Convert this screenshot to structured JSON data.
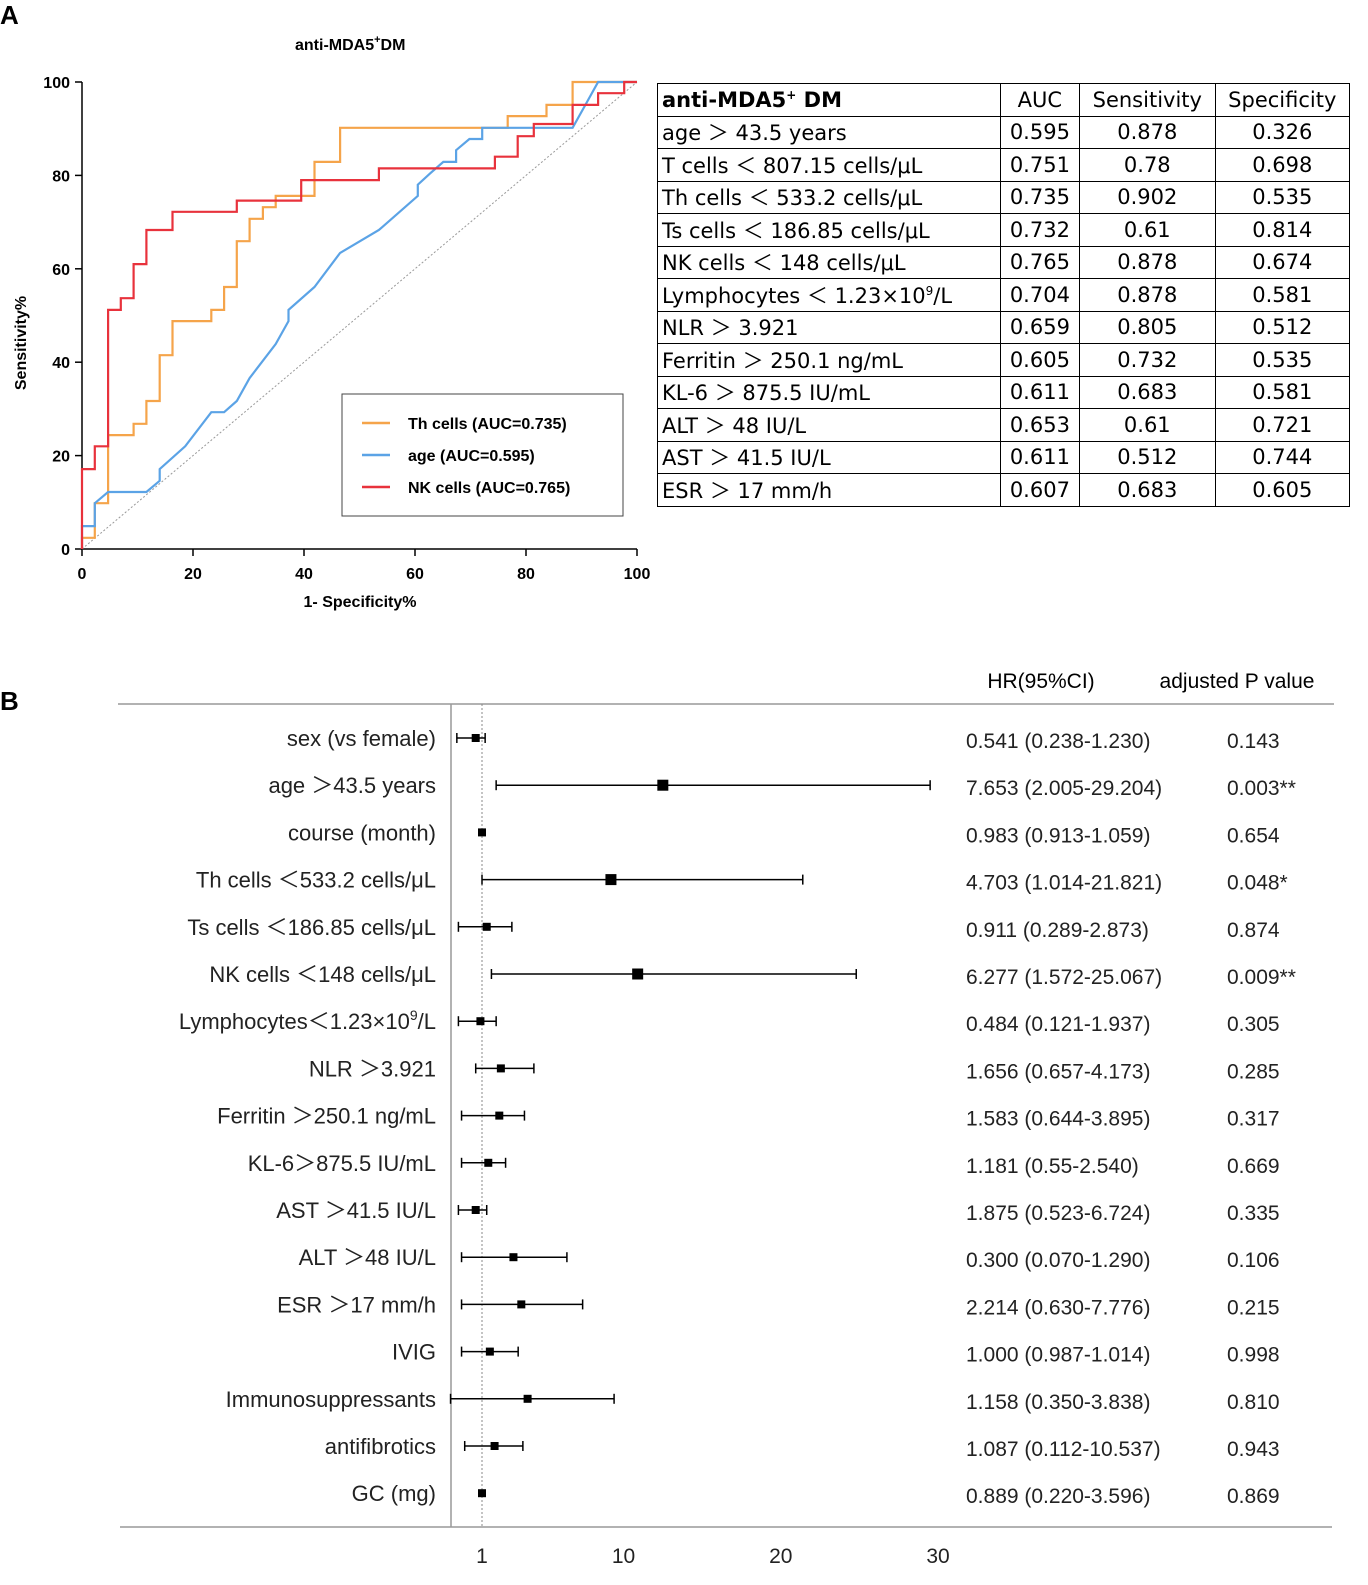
{
  "panel_a": {
    "label": "A",
    "chart_title": "anti-MDA5",
    "chart_title_sup": "+",
    "chart_title_suffix": "DM",
    "x_label": "1- Specificity%",
    "y_label": "Sensitivity%",
    "x_ticks": [
      "0",
      "20",
      "40",
      "60",
      "80",
      "100"
    ],
    "y_ticks": [
      "0",
      "20",
      "40",
      "60",
      "80",
      "100"
    ],
    "legend": [
      {
        "label": "Th cells (AUC=0.735)",
        "color": "#f5a44a"
      },
      {
        "label": "age (AUC=0.595)",
        "color": "#5ba3e6"
      },
      {
        "label": "NK cells (AUC=0.765)",
        "color": "#e8323c"
      }
    ]
  },
  "table_a": {
    "headers": [
      "anti-MDA5",
      "AUC",
      "Sensitivity",
      "Specificity"
    ],
    "header_sup": "+",
    "header_suffix": " DM",
    "rows": [
      {
        "label": "age ＞ 43.5 years",
        "auc": "0.595",
        "sens": "0.878",
        "spec": "0.326"
      },
      {
        "label": "T cells ＜ 807.15 cells/μL",
        "auc": "0.751",
        "sens": "0.78",
        "spec": "0.698"
      },
      {
        "label": "Th cells ＜ 533.2 cells/μL",
        "auc": "0.735",
        "sens": "0.902",
        "spec": "0.535"
      },
      {
        "label": "Ts cells ＜ 186.85 cells/μL",
        "auc": "0.732",
        "sens": "0.61",
        "spec": "0.814"
      },
      {
        "label": "NK cells ＜ 148 cells/μL",
        "auc": "0.765",
        "sens": "0.878",
        "spec": "0.674"
      },
      {
        "label": "Lymphocytes ＜ 1.23×10",
        "sup": "9",
        "label_suffix": "/L",
        "auc": "0.704",
        "sens": "0.878",
        "spec": "0.581"
      },
      {
        "label": "NLR ＞ 3.921",
        "auc": "0.659",
        "sens": "0.805",
        "spec": "0.512"
      },
      {
        "label": "Ferritin ＞ 250.1 ng/mL",
        "auc": "0.605",
        "sens": "0.732",
        "spec": "0.535"
      },
      {
        "label": "KL-6 ＞ 875.5 IU/mL",
        "auc": "0.611",
        "sens": "0.683",
        "spec": "0.581"
      },
      {
        "label": "ALT ＞ 48 IU/L",
        "auc": "0.653",
        "sens": "0.61",
        "spec": "0.721"
      },
      {
        "label": "AST ＞ 41.5 IU/L",
        "auc": "0.611",
        "sens": "0.512",
        "spec": "0.744"
      },
      {
        "label": "ESR ＞ 17 mm/h",
        "auc": "0.607",
        "sens": "0.683",
        "spec": "0.605"
      }
    ]
  },
  "panel_b": {
    "label": "B",
    "col_hr": "HR(95%CI)",
    "col_p": "adjusted P value",
    "x_ticks": [
      "1",
      "10",
      "20",
      "30"
    ]
  },
  "chart_data": [
    {
      "type": "line",
      "title": "anti-MDA5+DM",
      "xlabel": "1- Specificity%",
      "ylabel": "Sensitivity%",
      "xlim": [
        0,
        100
      ],
      "ylim": [
        0,
        100
      ],
      "reference_line": true,
      "series": [
        {
          "name": "Th cells (AUC=0.735)",
          "color": "#f5a44a",
          "points": [
            [
              0,
              0
            ],
            [
              0,
              2.4
            ],
            [
              2.3,
              2.4
            ],
            [
              2.3,
              9.8
            ],
            [
              4.7,
              9.8
            ],
            [
              4.7,
              24.4
            ],
            [
              9.3,
              24.4
            ],
            [
              9.3,
              26.8
            ],
            [
              11.6,
              26.8
            ],
            [
              11.6,
              31.7
            ],
            [
              14,
              31.7
            ],
            [
              14,
              41.5
            ],
            [
              16.3,
              41.5
            ],
            [
              16.3,
              48.8
            ],
            [
              23.3,
              48.8
            ],
            [
              23.3,
              51.2
            ],
            [
              25.6,
              51.2
            ],
            [
              25.6,
              56.1
            ],
            [
              27.9,
              56.1
            ],
            [
              27.9,
              58.5
            ],
            [
              27.9,
              65.9
            ],
            [
              30.2,
              65.9
            ],
            [
              30.2,
              70.7
            ],
            [
              32.6,
              70.7
            ],
            [
              32.6,
              73.2
            ],
            [
              34.9,
              73.2
            ],
            [
              34.9,
              75.6
            ],
            [
              41.9,
              75.6
            ],
            [
              41.9,
              82.9
            ],
            [
              46.5,
              82.9
            ],
            [
              46.5,
              90.2
            ],
            [
              76.7,
              90.2
            ],
            [
              76.7,
              92.7
            ],
            [
              83.7,
              92.7
            ],
            [
              83.7,
              95.1
            ],
            [
              88.4,
              95.1
            ],
            [
              88.4,
              97.6
            ],
            [
              88.4,
              100
            ],
            [
              100,
              100
            ]
          ]
        },
        {
          "name": "age (AUC=0.595)",
          "color": "#5ba3e6",
          "points": [
            [
              0,
              0
            ],
            [
              0,
              4.9
            ],
            [
              2.3,
              4.9
            ],
            [
              2.3,
              9.8
            ],
            [
              4.7,
              12.2
            ],
            [
              9.3,
              12.2
            ],
            [
              11.6,
              12.2
            ],
            [
              14,
              14.6
            ],
            [
              14,
              17.1
            ],
            [
              18.6,
              22
            ],
            [
              23.3,
              29.3
            ],
            [
              25.6,
              29.3
            ],
            [
              27.9,
              31.7
            ],
            [
              30.2,
              36.6
            ],
            [
              34.9,
              43.9
            ],
            [
              37.2,
              48.8
            ],
            [
              37.2,
              51.2
            ],
            [
              41.9,
              56.1
            ],
            [
              46.5,
              63.4
            ],
            [
              53.5,
              68.3
            ],
            [
              60.5,
              75.6
            ],
            [
              60.5,
              78
            ],
            [
              62.8,
              80.5
            ],
            [
              65.1,
              82.9
            ],
            [
              67.4,
              82.9
            ],
            [
              67.4,
              85.4
            ],
            [
              69.8,
              87.8
            ],
            [
              72.1,
              87.8
            ],
            [
              72.1,
              90.2
            ],
            [
              79.1,
              90.2
            ],
            [
              88.4,
              90.2
            ],
            [
              90.7,
              95.1
            ],
            [
              93,
              100
            ],
            [
              100,
              100
            ]
          ]
        },
        {
          "name": "NK cells (AUC=0.765)",
          "color": "#e8323c",
          "points": [
            [
              0,
              0
            ],
            [
              0,
              9.8
            ],
            [
              0,
              17.1
            ],
            [
              2.3,
              17.1
            ],
            [
              2.3,
              19.5
            ],
            [
              2.3,
              22
            ],
            [
              4.7,
              22
            ],
            [
              4.7,
              51.2
            ],
            [
              7,
              51.2
            ],
            [
              7,
              53.7
            ],
            [
              9.3,
              53.7
            ],
            [
              9.3,
              61
            ],
            [
              11.6,
              61
            ],
            [
              11.6,
              68.3
            ],
            [
              16.3,
              68.3
            ],
            [
              16.3,
              72.2
            ],
            [
              27.9,
              72.2
            ],
            [
              27.9,
              74.6
            ],
            [
              39.5,
              74.6
            ],
            [
              39.5,
              79
            ],
            [
              53.5,
              79
            ],
            [
              53.5,
              81.5
            ],
            [
              74.4,
              81.5
            ],
            [
              74.4,
              84
            ],
            [
              78.5,
              84
            ],
            [
              78.5,
              88.4
            ],
            [
              81.4,
              88.4
            ],
            [
              81.4,
              91
            ],
            [
              88.4,
              91
            ],
            [
              88.4,
              95.1
            ],
            [
              93,
              95.1
            ],
            [
              93,
              97.6
            ],
            [
              97.7,
              97.6
            ],
            [
              97.7,
              100
            ],
            [
              100,
              100
            ]
          ]
        }
      ]
    },
    {
      "type": "forest",
      "xlabel": "",
      "reference_line_x": 1,
      "xlim": [
        -1,
        36
      ],
      "categories": [
        "sex (vs female)",
        "age ＞43.5 years",
        "course (month)",
        "Th cells ＜533.2 cells/μL",
        "Ts cells ＜186.85 cells/μL",
        "NK cells ＜148 cells/μL",
        "Lymphocytes＜1.23×10⁹/L",
        "NLR ＞3.921",
        "Ferritin ＞250.1 ng/mL",
        "KL-6＞875.5 IU/mL",
        "AST ＞41.5 IU/L",
        "ALT ＞48 IU/L",
        "ESR ＞17 mm/h",
        "IVIG",
        "Immunosuppressants",
        "antifibrotics",
        "GC (mg)"
      ],
      "rows": [
        {
          "label": "sex (vs female)",
          "hr": 0.541,
          "lo": 0.238,
          "hi": 1.23,
          "hr_text": "0.541 (0.238-1.230)",
          "p_text": "0.143"
        },
        {
          "label": "age ＞43.5 years",
          "hr": 7.653,
          "lo": 2.005,
          "hi": 29.204,
          "hr_text": "7.653 (2.005-29.204)",
          "p_text": "0.003**"
        },
        {
          "label": "course (month)",
          "hr": 0.983,
          "lo": 0.913,
          "hi": 1.059,
          "hr_text": "0.983 (0.913-1.059)",
          "p_text": "0.654"
        },
        {
          "label": "Th cells ＜533.2 cells/μL",
          "hr": 4.703,
          "lo": 1.014,
          "hi": 21.821,
          "hr_text": "4.703 (1.014-21.821)",
          "p_text": "0.048*"
        },
        {
          "label": "Ts cells ＜186.85 cells/μL",
          "hr": 0.911,
          "lo": 0.289,
          "hi": 2.873,
          "hr_text": "0.911 (0.289-2.873)",
          "p_text": "0.874"
        },
        {
          "label": "NK cells ＜148 cells/μL",
          "hr": 6.277,
          "lo": 1.572,
          "hi": 25.067,
          "hr_text": "6.277 (1.572-25.067)",
          "p_text": "0.009**"
        },
        {
          "label": "Lymphocytes＜1.23×10",
          "sup": "9",
          "label_suffix": "/L",
          "hr": 0.484,
          "lo": 0.121,
          "hi": 1.937,
          "hr_text": "0.484 (0.121-1.937)",
          "p_text": "0.305"
        },
        {
          "label": "NLR ＞3.921",
          "hr": 1.656,
          "lo": 0.657,
          "hi": 4.173,
          "hr_text": "1.656 (0.657-4.173)",
          "p_text": "0.285"
        },
        {
          "label": "Ferritin ＞250.1 ng/mL",
          "hr": 1.583,
          "lo": 0.644,
          "hi": 3.895,
          "hr_text": "1.583 (0.644-3.895)",
          "p_text": "0.317"
        },
        {
          "label": "KL-6＞875.5 IU/mL",
          "hr": 1.181,
          "lo": 0.55,
          "hi": 2.54,
          "hr_text": "1.181 (0.55-2.540)",
          "p_text": "0.669"
        },
        {
          "label": "AST ＞41.5 IU/L",
          "hr": 1.875,
          "lo": 0.523,
          "hi": 6.724,
          "hr_text": "1.875 (0.523-6.724)",
          "p_text": "0.335"
        },
        {
          "label": "ALT ＞48 IU/L",
          "hr": 0.3,
          "lo": 0.07,
          "hi": 1.29,
          "hr_text": "0.300 (0.070-1.290)",
          "p_text": "0.106"
        },
        {
          "label": "ESR ＞17 mm/h",
          "hr": 2.214,
          "lo": 0.63,
          "hi": 7.776,
          "hr_text": "2.214 (0.630-7.776)",
          "p_text": "0.215"
        },
        {
          "label": "IVIG",
          "hr": 1.0,
          "lo": 0.987,
          "hi": 1.014,
          "hr_text": "1.000 (0.987-1.014)",
          "p_text": "0.998"
        },
        {
          "label": "Immunosuppressants",
          "hr": 1.158,
          "lo": 0.35,
          "hi": 3.838,
          "hr_text": "1.158 (0.350-3.838)",
          "p_text": "0.810"
        },
        {
          "label": "antifibrotics",
          "hr": 1.087,
          "lo": 0.112,
          "hi": 10.537,
          "hr_text": "1.087 (0.112-10.537)",
          "p_text": "0.943"
        },
        {
          "label": "GC (mg)",
          "hr": 0.889,
          "lo": 0.22,
          "hi": 3.596,
          "hr_text": "0.889 (0.220-3.596)",
          "p_text": "0.869"
        }
      ],
      "plotted_marks": [
        {
          "est": 0.6,
          "lo": -0.6,
          "hi": 1.2
        },
        {
          "est": 12.5,
          "lo": 1.9,
          "hi": 29.5
        },
        {
          "est": 1.0,
          "lo": 1.0,
          "hi": 1.0
        },
        {
          "est": 9.2,
          "lo": 1.0,
          "hi": 21.4
        },
        {
          "est": 1.3,
          "lo": -0.5,
          "hi": 2.9
        },
        {
          "est": 10.9,
          "lo": 1.6,
          "hi": 24.8
        },
        {
          "est": 0.9,
          "lo": -0.5,
          "hi": 1.9
        },
        {
          "est": 2.2,
          "lo": 0.6,
          "hi": 4.3
        },
        {
          "est": 2.1,
          "lo": -0.3,
          "hi": 3.7
        },
        {
          "est": 1.4,
          "lo": -0.3,
          "hi": 2.5
        },
        {
          "est": 0.6,
          "lo": -0.5,
          "hi": 1.3
        },
        {
          "est": 3.0,
          "lo": -0.3,
          "hi": 6.4
        },
        {
          "est": 3.5,
          "lo": -0.3,
          "hi": 7.4
        },
        {
          "est": 1.5,
          "lo": -0.3,
          "hi": 3.3
        },
        {
          "est": 3.9,
          "lo": -1.0,
          "hi": 9.4
        },
        {
          "est": 1.8,
          "lo": -0.1,
          "hi": 3.6
        },
        {
          "est": 1.0,
          "lo": 1.0,
          "hi": 1.0
        }
      ]
    }
  ]
}
